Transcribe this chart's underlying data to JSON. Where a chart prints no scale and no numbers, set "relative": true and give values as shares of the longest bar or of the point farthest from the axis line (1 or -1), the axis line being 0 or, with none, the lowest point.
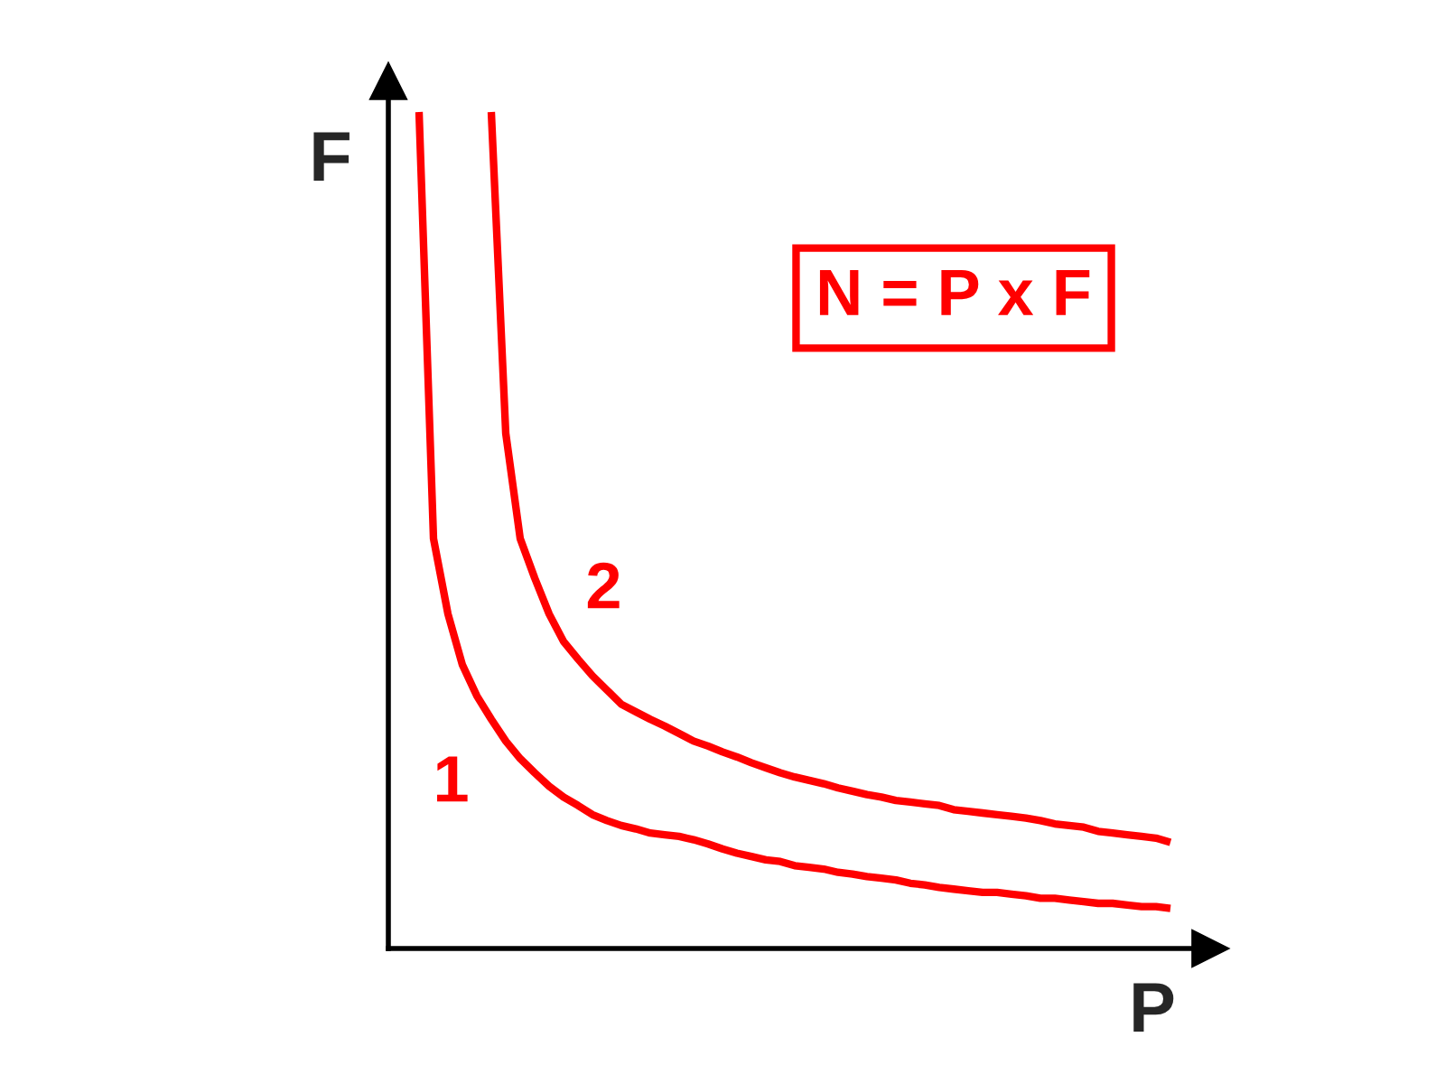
{
  "chart_data": {
    "type": "line",
    "relative": true,
    "xlabel": "P",
    "ylabel": "F",
    "annotations": [
      "N = P x F"
    ],
    "categories": [
      null,
      null,
      null,
      null,
      null,
      null,
      null,
      null,
      null,
      null,
      null,
      null,
      null,
      null,
      null,
      null,
      null,
      null,
      null,
      null,
      null,
      null,
      null,
      null,
      null,
      null,
      null,
      null,
      null,
      null,
      null,
      null,
      null,
      null,
      null,
      null,
      null,
      null,
      null,
      null,
      null,
      null,
      null,
      null,
      null,
      null,
      null,
      null,
      null,
      null,
      null,
      null,
      null
    ],
    "series": [
      {
        "name": "1",
        "color": "#ff0000",
        "values": [
          1.0,
          0.49,
          0.4,
          0.339,
          0.302,
          0.274,
          0.248,
          0.227,
          0.21,
          0.194,
          0.181,
          0.171,
          0.16,
          0.153,
          0.147,
          0.143,
          0.138,
          0.136,
          0.134,
          0.13,
          0.125,
          0.119,
          0.114,
          0.11,
          0.106,
          0.104,
          0.099,
          0.097,
          0.095,
          0.091,
          0.089,
          0.086,
          0.084,
          0.082,
          0.078,
          0.076,
          0.073,
          0.071,
          0.069,
          0.067,
          0.067,
          0.065,
          0.063,
          0.06,
          0.06,
          0.058,
          0.056,
          0.054,
          0.054,
          0.052,
          0.05,
          0.05,
          0.048
        ]
      },
      {
        "name": "2",
        "color": "#ff0000",
        "values": [
          null,
          null,
          null,
          null,
          null,
          1.0,
          0.616,
          0.49,
          0.443,
          0.4,
          0.367,
          0.346,
          0.326,
          0.309,
          0.292,
          0.283,
          0.274,
          0.266,
          0.257,
          0.248,
          0.242,
          0.235,
          0.229,
          0.222,
          0.216,
          0.21,
          0.205,
          0.201,
          0.197,
          0.192,
          0.188,
          0.184,
          0.181,
          0.177,
          0.175,
          0.173,
          0.171,
          0.166,
          0.164,
          0.162,
          0.16,
          0.158,
          0.156,
          0.153,
          0.149,
          0.147,
          0.145,
          0.14,
          0.138,
          0.136,
          0.134,
          0.132,
          0.127
        ]
      }
    ],
    "line_style": "solid",
    "marker": "none"
  }
}
